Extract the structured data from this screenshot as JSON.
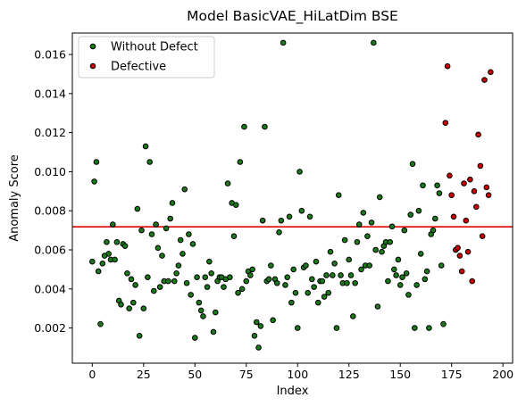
{
  "chart_data": {
    "type": "scatter",
    "title": "Model BasicVAE_HiLatDim BSE",
    "xlabel": "Index",
    "ylabel": "Anomaly Score",
    "xlim": [
      -9.7,
      204.7
    ],
    "ylim": [
      0.0002,
      0.0171
    ],
    "xticks": [
      0,
      25,
      50,
      75,
      100,
      125,
      150,
      175,
      200
    ],
    "yticks": [
      0.002,
      0.004,
      0.006,
      0.008,
      0.01,
      0.012,
      0.014,
      0.016
    ],
    "ytick_labels": [
      "0.002",
      "0.004",
      "0.006",
      "0.008",
      "0.010",
      "0.012",
      "0.014",
      "0.016"
    ],
    "grid": false,
    "legend_position": "top-left",
    "threshold": 0.00718,
    "threshold_color": "#dd0000",
    "series": [
      {
        "name": "Without Defect",
        "color": "#1a7a1a",
        "points": [
          [
            0,
            0.0054
          ],
          [
            1,
            0.0095
          ],
          [
            2,
            0.0105
          ],
          [
            3,
            0.0049
          ],
          [
            4,
            0.0022
          ],
          [
            5,
            0.0053
          ],
          [
            6,
            0.0057
          ],
          [
            7,
            0.0064
          ],
          [
            8,
            0.0058
          ],
          [
            9,
            0.0055
          ],
          [
            10,
            0.0073
          ],
          [
            11,
            0.0055
          ],
          [
            12,
            0.0064
          ],
          [
            13,
            0.0034
          ],
          [
            14,
            0.0032
          ],
          [
            15,
            0.0063
          ],
          [
            16,
            0.0062
          ],
          [
            17,
            0.0048
          ],
          [
            18,
            0.003
          ],
          [
            19,
            0.0045
          ],
          [
            20,
            0.0033
          ],
          [
            21,
            0.0042
          ],
          [
            22,
            0.0081
          ],
          [
            23,
            0.0016
          ],
          [
            24,
            0.007
          ],
          [
            25,
            0.003
          ],
          [
            26,
            0.0113
          ],
          [
            27,
            0.0046
          ],
          [
            28,
            0.0105
          ],
          [
            29,
            0.0068
          ],
          [
            30,
            0.0039
          ],
          [
            31,
            0.0073
          ],
          [
            32,
            0.0061
          ],
          [
            33,
            0.0041
          ],
          [
            34,
            0.0057
          ],
          [
            35,
            0.0044
          ],
          [
            36,
            0.0071
          ],
          [
            37,
            0.0044
          ],
          [
            38,
            0.0076
          ],
          [
            39,
            0.0084
          ],
          [
            40,
            0.0044
          ],
          [
            41,
            0.0048
          ],
          [
            42,
            0.0052
          ],
          [
            43,
            0.0065
          ],
          [
            44,
            0.0058
          ],
          [
            45,
            0.0091
          ],
          [
            46,
            0.0043
          ],
          [
            47,
            0.0068
          ],
          [
            48,
            0.0037
          ],
          [
            49,
            0.0063
          ],
          [
            50,
            0.0015
          ],
          [
            51,
            0.0046
          ],
          [
            52,
            0.0033
          ],
          [
            53,
            0.0029
          ],
          [
            54,
            0.0026
          ],
          [
            55,
            0.0046
          ],
          [
            56,
            0.0041
          ],
          [
            57,
            0.0054
          ],
          [
            58,
            0.0048
          ],
          [
            59,
            0.0018
          ],
          [
            60,
            0.0028
          ],
          [
            61,
            0.0044
          ],
          [
            62,
            0.0046
          ],
          [
            63,
            0.0046
          ],
          [
            64,
            0.0041
          ],
          [
            65,
            0.0045
          ],
          [
            66,
            0.0094
          ],
          [
            67,
            0.0046
          ],
          [
            68,
            0.0084
          ],
          [
            69,
            0.0067
          ],
          [
            70,
            0.0083
          ],
          [
            71,
            0.0038
          ],
          [
            72,
            0.0105
          ],
          [
            73,
            0.004
          ],
          [
            74,
            0.0123
          ],
          [
            75,
            0.0044
          ],
          [
            76,
            0.0049
          ],
          [
            77,
            0.0047
          ],
          [
            78,
            0.005
          ],
          [
            79,
            0.0016
          ],
          [
            80,
            0.0023
          ],
          [
            81,
            0.001
          ],
          [
            82,
            0.0021
          ],
          [
            83,
            0.0075
          ],
          [
            84,
            0.0123
          ],
          [
            85,
            0.0044
          ],
          [
            86,
            0.0045
          ],
          [
            87,
            0.0052
          ],
          [
            88,
            0.0024
          ],
          [
            89,
            0.0045
          ],
          [
            90,
            0.0043
          ],
          [
            91,
            0.0069
          ],
          [
            92,
            0.0075
          ],
          [
            93,
            0.0166
          ],
          [
            94,
            0.0042
          ],
          [
            95,
            0.0046
          ],
          [
            96,
            0.0077
          ],
          [
            97,
            0.0033
          ],
          [
            98,
            0.005
          ],
          [
            99,
            0.0038
          ],
          [
            100,
            0.002
          ],
          [
            101,
            0.01
          ],
          [
            102,
            0.008
          ],
          [
            103,
            0.0051
          ],
          [
            104,
            0.0052
          ],
          [
            105,
            0.0038
          ],
          [
            106,
            0.0077
          ],
          [
            107,
            0.0045
          ],
          [
            108,
            0.0041
          ],
          [
            109,
            0.0054
          ],
          [
            110,
            0.0033
          ],
          [
            111,
            0.0044
          ],
          [
            112,
            0.0044
          ],
          [
            113,
            0.0036
          ],
          [
            114,
            0.0047
          ],
          [
            115,
            0.0038
          ],
          [
            116,
            0.0059
          ],
          [
            117,
            0.0047
          ],
          [
            118,
            0.0053
          ],
          [
            119,
            0.002
          ],
          [
            120,
            0.0088
          ],
          [
            121,
            0.0047
          ],
          [
            122,
            0.0043
          ],
          [
            123,
            0.0065
          ],
          [
            124,
            0.0043
          ],
          [
            125,
            0.0055
          ],
          [
            126,
            0.0047
          ],
          [
            127,
            0.0026
          ],
          [
            128,
            0.0043
          ],
          [
            129,
            0.0064
          ],
          [
            130,
            0.0073
          ],
          [
            131,
            0.005
          ],
          [
            132,
            0.0079
          ],
          [
            133,
            0.0052
          ],
          [
            134,
            0.0067
          ],
          [
            135,
            0.0052
          ],
          [
            136,
            0.0074
          ],
          [
            137,
            0.0166
          ],
          [
            138,
            0.006
          ],
          [
            139,
            0.0031
          ],
          [
            140,
            0.0087
          ],
          [
            141,
            0.0059
          ],
          [
            142,
            0.0062
          ],
          [
            143,
            0.0064
          ],
          [
            144,
            0.0044
          ],
          [
            145,
            0.0064
          ],
          [
            146,
            0.0072
          ],
          [
            147,
            0.005
          ],
          [
            148,
            0.0047
          ],
          [
            149,
            0.0055
          ],
          [
            150,
            0.0042
          ],
          [
            151,
            0.0046
          ],
          [
            152,
            0.007
          ],
          [
            153,
            0.0048
          ],
          [
            154,
            0.0037
          ],
          [
            155,
            0.0078
          ],
          [
            156,
            0.0104
          ],
          [
            157,
            0.002
          ],
          [
            158,
            0.0042
          ],
          [
            159,
            0.008
          ],
          [
            160,
            0.0058
          ],
          [
            161,
            0.0093
          ],
          [
            162,
            0.0045
          ],
          [
            163,
            0.0049
          ],
          [
            164,
            0.002
          ],
          [
            165,
            0.0068
          ],
          [
            166,
            0.007
          ],
          [
            167,
            0.0076
          ],
          [
            168,
            0.0093
          ],
          [
            169,
            0.0089
          ],
          [
            170,
            0.0052
          ],
          [
            171,
            0.0022
          ]
        ]
      },
      {
        "name": "Defective",
        "color": "#cc0000",
        "points": [
          [
            172,
            0.0125
          ],
          [
            173,
            0.0154
          ],
          [
            174,
            0.0098
          ],
          [
            175,
            0.0088
          ],
          [
            176,
            0.0077
          ],
          [
            177,
            0.006
          ],
          [
            178,
            0.0061
          ],
          [
            179,
            0.0057
          ],
          [
            180,
            0.0049
          ],
          [
            181,
            0.0094
          ],
          [
            182,
            0.0075
          ],
          [
            183,
            0.0059
          ],
          [
            184,
            0.0096
          ],
          [
            185,
            0.0044
          ],
          [
            186,
            0.009
          ],
          [
            187,
            0.0082
          ],
          [
            188,
            0.0119
          ],
          [
            189,
            0.0103
          ],
          [
            190,
            0.0067
          ],
          [
            191,
            0.0147
          ],
          [
            192,
            0.0092
          ],
          [
            193,
            0.0088
          ],
          [
            194,
            0.0151
          ]
        ]
      }
    ]
  }
}
